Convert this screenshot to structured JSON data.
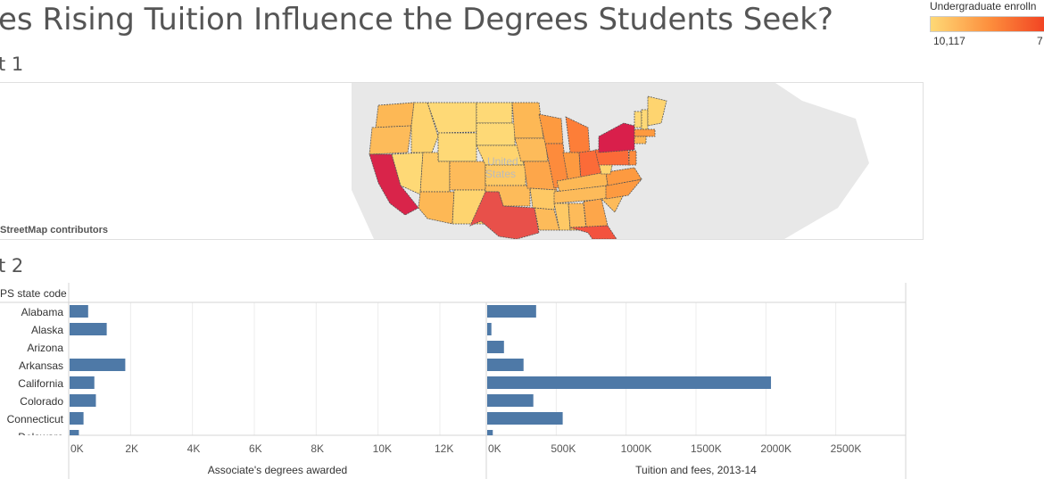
{
  "header": {
    "title": "es Rising Tuition Influence the Degrees Students Seek?",
    "sheet1_label": "t 1",
    "sheet2_label": "t 2"
  },
  "legend": {
    "title": "Undergraduate enrolln",
    "min_label": "10,117",
    "max_label": "7",
    "color_low": "#fed976",
    "color_high": "#e0244a"
  },
  "map": {
    "attribution": "StreetMap contributors",
    "country_label_line1": "United",
    "country_label_line2": "States"
  },
  "chart_data": [
    {
      "type": "bar",
      "orientation": "horizontal",
      "row_header": "PS state code",
      "categories": [
        "Alabama",
        "Alaska",
        "Arizona",
        "Arkansas",
        "California",
        "Colorado",
        "Connecticut",
        "Delaware"
      ],
      "values": [
        600,
        1200,
        0,
        1800,
        800,
        850,
        450,
        300
      ],
      "xlabel": "Associate's degrees awarded",
      "xticks": [
        "0K",
        "2K",
        "4K",
        "6K",
        "8K",
        "10K",
        "12K"
      ],
      "xlim": [
        0,
        13500
      ],
      "color": "#4e79a7"
    },
    {
      "type": "bar",
      "orientation": "horizontal",
      "categories": [
        "Alabama",
        "Alaska",
        "Arizona",
        "Arkansas",
        "California",
        "Colorado",
        "Connecticut",
        "Delaware"
      ],
      "values": [
        350000,
        30000,
        120000,
        260000,
        2030000,
        330000,
        540000,
        40000
      ],
      "xlabel": "Tuition and fees, 2013-14",
      "xticks": [
        "0K",
        "500K",
        "1000K",
        "1500K",
        "2000K",
        "2500K"
      ],
      "xlim": [
        0,
        3000000
      ],
      "color": "#4e79a7"
    }
  ]
}
